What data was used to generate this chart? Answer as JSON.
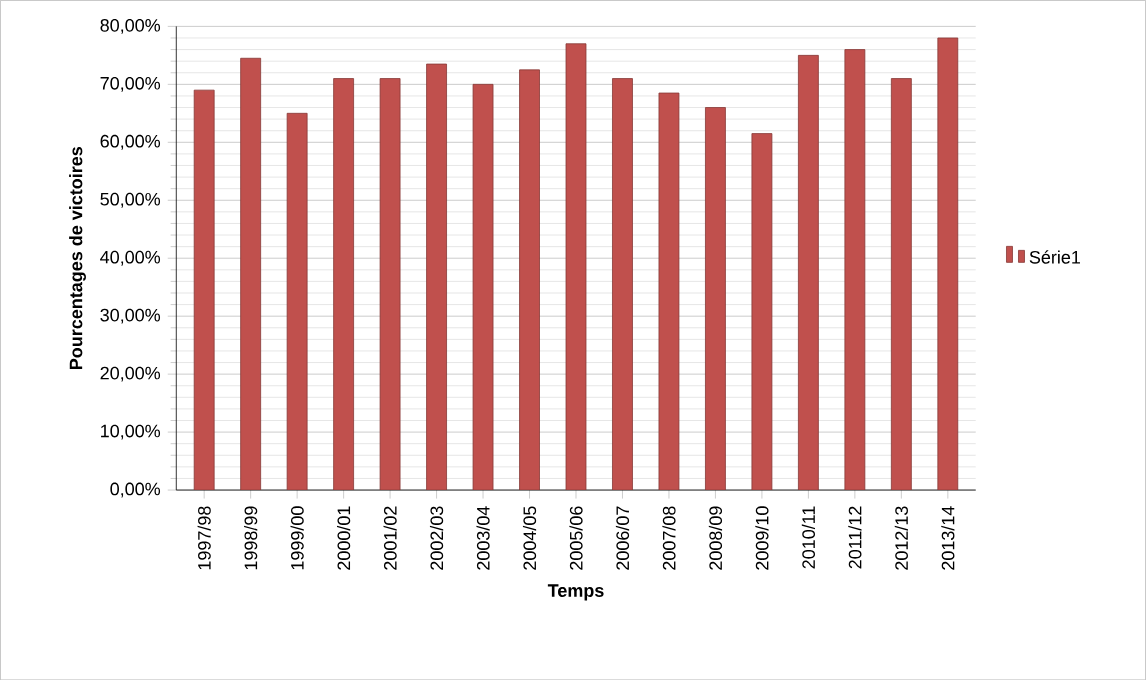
{
  "chart_data": {
    "type": "bar",
    "xlabel": "Temps",
    "ylabel": "Pourcentages de victoires",
    "categories": [
      "1997/98",
      "1998/99",
      "1999/00",
      "2000/01",
      "2001/02",
      "2002/03",
      "2003/04",
      "2004/05",
      "2005/06",
      "2006/07",
      "2007/08",
      "2008/09",
      "2009/10",
      "2010/11",
      "2011/12",
      "2012/13",
      "2013/14"
    ],
    "series": [
      {
        "name": "Série1",
        "color": "#c0504d",
        "values": [
          69,
          74.5,
          65,
          71,
          71,
          73.5,
          70,
          72.5,
          77,
          71,
          68.5,
          66,
          61.5,
          75,
          76,
          71,
          78
        ]
      }
    ],
    "ylim": [
      0,
      80
    ],
    "yticks": [
      {
        "value": 0,
        "label": "0,00%"
      },
      {
        "value": 10,
        "label": "10,00%"
      },
      {
        "value": 20,
        "label": "20,00%"
      },
      {
        "value": 30,
        "label": "30,00%"
      },
      {
        "value": 40,
        "label": "40,00%"
      },
      {
        "value": 50,
        "label": "50,00%"
      },
      {
        "value": 60,
        "label": "60,00%"
      },
      {
        "value": 70,
        "label": "70,00%"
      },
      {
        "value": 80,
        "label": "80,00%"
      }
    ],
    "grid": "y",
    "legend": "right"
  }
}
